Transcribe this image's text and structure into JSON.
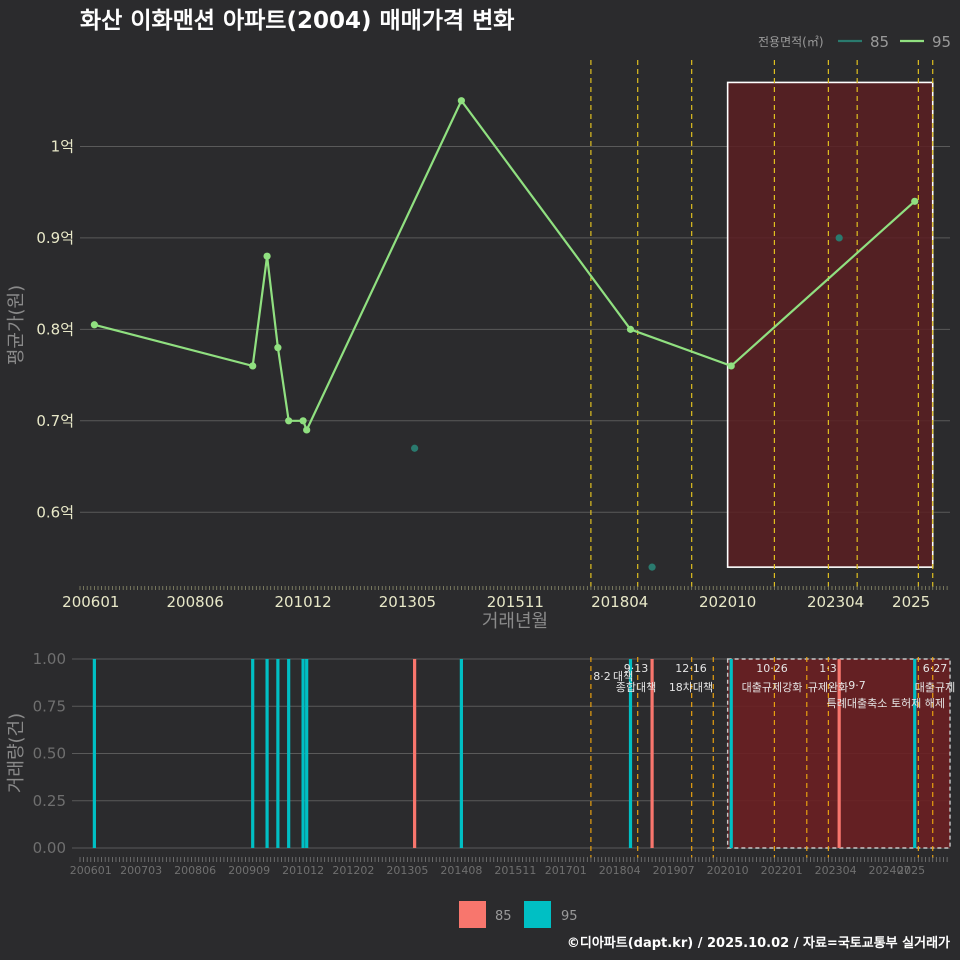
{
  "colors": {
    "background": "#2b2b2d",
    "grid": "#5a5a5a",
    "series85_top": "#2a7a6e",
    "series95_top": "#90e080",
    "series85_bottom": "#f8766d",
    "series95_bottom": "#00bfc4",
    "policy_line": "#e0c020",
    "policy_line_bottom": "#e8a010",
    "highlight_fill": "#5a1e22",
    "highlight_fill_bottom": "#6a1f22"
  },
  "chart_data": [
    {
      "type": "line",
      "title": "화산 이화맨션 아파트(2004) 매매가격 변화",
      "xlabel": "거래년월",
      "ylabel": "평균가(원)",
      "x_tick_labels": [
        "200601",
        "200806",
        "201012",
        "201305",
        "201511",
        "201804",
        "202010",
        "202304",
        "2025"
      ],
      "x_tick_values": [
        2006.0,
        2008.417,
        2010.917,
        2013.333,
        2015.833,
        2018.25,
        2020.75,
        2023.25,
        2025.0
      ],
      "xlim": [
        2005.75,
        2025.9
      ],
      "y_tick_labels": [
        "0.6억",
        "0.7억",
        "0.8억",
        "0.9억",
        "1억"
      ],
      "y_tick_values": [
        0.6,
        0.7,
        0.8,
        0.9,
        1.0
      ],
      "ylim": [
        0.515,
        1.1
      ],
      "legend_title": "전용면적(㎡)",
      "series": [
        {
          "name": "85",
          "style": "points",
          "x": [
            2013.5,
            2019.0,
            2023.333
          ],
          "y": [
            0.67,
            0.54,
            0.9
          ]
        },
        {
          "name": "95",
          "style": "line+points",
          "x": [
            2006.083,
            2009.75,
            2010.083,
            2010.333,
            2010.583,
            2010.917,
            2011.0,
            2014.583,
            2018.5,
            2020.833,
            2025.083
          ],
          "y": [
            0.805,
            0.76,
            0.88,
            0.78,
            0.7,
            0.7,
            0.69,
            1.05,
            0.8,
            0.76,
            0.94
          ]
        }
      ],
      "policy_lines_x": [
        2017.583,
        2018.667,
        2019.917,
        2021.833,
        2023.083,
        2023.75,
        2025.167,
        2025.5
      ],
      "highlight_range": {
        "x": [
          2020.75,
          2025.5
        ],
        "y": [
          0.54,
          1.07
        ]
      }
    },
    {
      "type": "bar",
      "ylabel": "거래량(건)",
      "x_tick_labels": [
        "200601",
        "200703",
        "200806",
        "200909",
        "201012",
        "201202",
        "201305",
        "201408",
        "201511",
        "201701",
        "201804",
        "201907",
        "202010",
        "202201",
        "202304",
        "202407",
        "2025"
      ],
      "x_tick_values": [
        2006.0,
        2007.167,
        2008.417,
        2009.667,
        2010.917,
        2012.083,
        2013.333,
        2014.583,
        2015.833,
        2017.0,
        2018.25,
        2019.5,
        2020.75,
        2022.0,
        2023.25,
        2024.5,
        2025.0
      ],
      "xlim": [
        2005.75,
        2025.9
      ],
      "y_tick_labels": [
        "0.00",
        "0.25",
        "0.50",
        "0.75",
        "1.00"
      ],
      "y_tick_values": [
        0,
        0.25,
        0.5,
        0.75,
        1.0
      ],
      "ylim": [
        0,
        1.0
      ],
      "series": [
        {
          "name": "85",
          "x": [
            2013.5,
            2019.0,
            2023.333
          ],
          "values": [
            1,
            1,
            1
          ]
        },
        {
          "name": "95",
          "x": [
            2006.083,
            2009.75,
            2010.083,
            2010.333,
            2010.583,
            2010.917,
            2011.0,
            2014.583,
            2018.5,
            2020.833,
            2025.083
          ],
          "values": [
            1,
            1,
            1,
            1,
            1,
            1,
            1,
            1,
            1,
            1,
            1
          ]
        }
      ],
      "policy_lines_x": [
        2017.583,
        2018.667,
        2019.917,
        2020.417,
        2021.833,
        2022.583,
        2023.083,
        2025.167,
        2025.5
      ],
      "policies": [
        {
          "date": "8·2",
          "name": "대책",
          "x": 2017.583
        },
        {
          "date": "9·13",
          "name": "종합대책",
          "x": 2018.667
        },
        {
          "date": "12·16",
          "name": "18차대책",
          "x": 2019.917
        },
        {
          "date": "10·26",
          "name": "대출규제강화",
          "x": 2021.833
        },
        {
          "date": "1·3",
          "name": "규제완화",
          "x": 2023.083
        },
        {
          "date": "9·7",
          "name": "특례대출축소",
          "x": 2023.75
        },
        {
          "date": "",
          "name": "토허제 해제",
          "x": 2025.167
        },
        {
          "date": "6·27",
          "name": "대출규제",
          "x": 2025.5
        }
      ],
      "highlight_range": {
        "x": [
          2020.75,
          2025.9
        ]
      },
      "legend": [
        "85",
        "95"
      ]
    }
  ],
  "footer": "©디아파트(dapt.kr) / 2025.10.02 / 자료=국토교통부 실거래가"
}
